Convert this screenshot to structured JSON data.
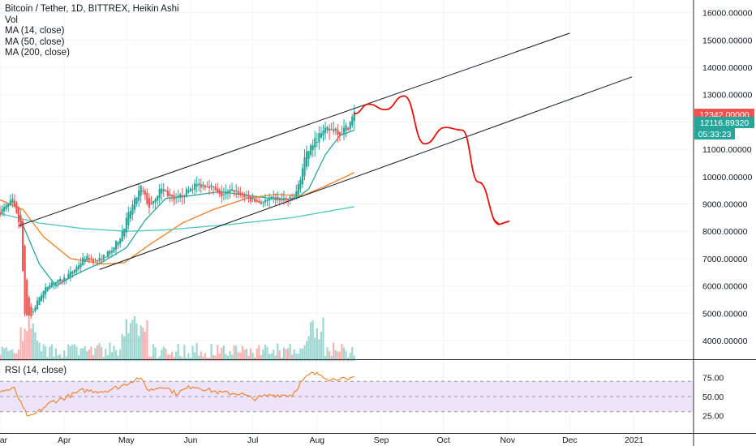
{
  "header": {
    "title": "Bitcoin / Tether, 1D, BITTREX, Heikin Ashi",
    "indicators": [
      "Vol",
      "MA (14, close)",
      "MA (50, close)",
      "MA (200, close)"
    ]
  },
  "rsi_label": "RSI (14, close)",
  "price_tags": {
    "last_price": "12342.00000",
    "ma_price": "12116.89320",
    "countdown": "05:33:23"
  },
  "colors": {
    "up": "#26a69a",
    "down": "#ef5350",
    "ma14": "#26a69a",
    "ma50": "#f57c1f",
    "ma200": "#4dc6c0",
    "rsi": "#f57c1f",
    "rsi_band": "#ede4fb",
    "drawing": "#e8100a",
    "trendline": "#131722"
  },
  "chart_data": [
    {
      "type": "candlestick",
      "title": "Bitcoin / Tether, 1D, BITTREX, Heikin Ashi",
      "x_axis": {
        "ticks": [
          "Mar",
          "Apr",
          "May",
          "Jun",
          "Jul",
          "Aug",
          "Sep",
          "Oct",
          "Nov",
          "Dec",
          "2021"
        ],
        "range": [
          "2020-03-01",
          "2021-01-20"
        ]
      },
      "y_axis": {
        "ticks": [
          "4000.00000",
          "5000.00000",
          "6000.00000",
          "7000.00000",
          "8000.00000",
          "9000.00000",
          "10000.00000",
          "11000.00000",
          "12000.00000",
          "13000.00000",
          "14000.00000",
          "15000.00000",
          "16000.00000"
        ],
        "range": [
          3300,
          16400
        ],
        "position": "right"
      },
      "series": [
        {
          "name": "Price (Heikin Ashi close)",
          "key_points": [
            [
              "2020-03-01",
              8700
            ],
            [
              "2020-03-07",
              9100
            ],
            [
              "2020-03-11",
              8100
            ],
            [
              "2020-03-13",
              5000
            ],
            [
              "2020-03-16",
              4900
            ],
            [
              "2020-03-20",
              5600
            ],
            [
              "2020-03-25",
              6100
            ],
            [
              "2020-03-31",
              6200
            ],
            [
              "2020-04-06",
              6600
            ],
            [
              "2020-04-11",
              7050
            ],
            [
              "2020-04-17",
              6900
            ],
            [
              "2020-04-24",
              7300
            ],
            [
              "2020-04-28",
              7800
            ],
            [
              "2020-05-02",
              8600
            ],
            [
              "2020-05-08",
              9600
            ],
            [
              "2020-05-12",
              8900
            ],
            [
              "2020-05-18",
              9600
            ],
            [
              "2020-05-24",
              9100
            ],
            [
              "2020-05-31",
              9500
            ],
            [
              "2020-06-03",
              9700
            ],
            [
              "2020-06-10",
              9700
            ],
            [
              "2020-06-15",
              9300
            ],
            [
              "2020-06-22",
              9500
            ],
            [
              "2020-06-30",
              9150
            ],
            [
              "2020-07-05",
              9050
            ],
            [
              "2020-07-12",
              9200
            ],
            [
              "2020-07-20",
              9150
            ],
            [
              "2020-07-22",
              9400
            ],
            [
              "2020-07-26",
              10600
            ],
            [
              "2020-07-28",
              11000
            ],
            [
              "2020-08-02",
              11500
            ],
            [
              "2020-08-06",
              11700
            ],
            [
              "2020-08-10",
              11750
            ],
            [
              "2020-08-12",
              11600
            ],
            [
              "2020-08-16",
              11850
            ],
            [
              "2020-08-19",
              12300
            ]
          ]
        },
        {
          "name": "MA (14, close)",
          "key_points": [
            [
              "2020-03-10",
              8600
            ],
            [
              "2020-03-20",
              6800
            ],
            [
              "2020-03-28",
              6000
            ],
            [
              "2020-04-06",
              6400
            ],
            [
              "2020-04-20",
              6900
            ],
            [
              "2020-05-01",
              7400
            ],
            [
              "2020-05-10",
              8400
            ],
            [
              "2020-05-20",
              9200
            ],
            [
              "2020-06-01",
              9300
            ],
            [
              "2020-06-15",
              9450
            ],
            [
              "2020-06-30",
              9300
            ],
            [
              "2020-07-15",
              9150
            ],
            [
              "2020-07-22",
              9200
            ],
            [
              "2020-07-28",
              9550
            ],
            [
              "2020-08-05",
              10800
            ],
            [
              "2020-08-12",
              11500
            ],
            [
              "2020-08-19",
              11700
            ]
          ]
        },
        {
          "name": "MA (50, close)",
          "key_points": [
            [
              "2020-03-01",
              9150
            ],
            [
              "2020-03-12",
              8800
            ],
            [
              "2020-03-22",
              7800
            ],
            [
              "2020-04-04",
              7000
            ],
            [
              "2020-04-20",
              6800
            ],
            [
              "2020-04-30",
              6850
            ],
            [
              "2020-05-12",
              7500
            ],
            [
              "2020-05-28",
              8300
            ],
            [
              "2020-06-12",
              8800
            ],
            [
              "2020-06-28",
              9200
            ],
            [
              "2020-07-12",
              9350
            ],
            [
              "2020-07-25",
              9300
            ],
            [
              "2020-08-05",
              9650
            ],
            [
              "2020-08-19",
              10150
            ]
          ]
        },
        {
          "name": "MA (200, close)",
          "key_points": [
            [
              "2020-03-01",
              8650
            ],
            [
              "2020-03-20",
              8300
            ],
            [
              "2020-04-10",
              8100
            ],
            [
              "2020-05-01",
              8000
            ],
            [
              "2020-05-20",
              8050
            ],
            [
              "2020-06-20",
              8250
            ],
            [
              "2020-07-20",
              8500
            ],
            [
              "2020-08-19",
              8900
            ]
          ]
        }
      ],
      "volume": {
        "name": "Vol",
        "approx_range_price_units": [
          3350,
          5000
        ]
      },
      "drawings": {
        "upper_trendline": [
          [
            "2020-03-10",
            8200
          ],
          [
            "2020-12-01",
            15250
          ]
        ],
        "lower_trendline": [
          [
            "2020-04-18",
            6600
          ],
          [
            "2020-12-31",
            13650
          ]
        ],
        "forecast_path_approx": [
          [
            "2020-08-19",
            12300
          ],
          [
            "2020-08-26",
            12650
          ],
          [
            "2020-09-03",
            12450
          ],
          [
            "2020-09-12",
            12950
          ],
          [
            "2020-09-22",
            11200
          ],
          [
            "2020-10-02",
            11800
          ],
          [
            "2020-10-10",
            11700
          ],
          [
            "2020-10-18",
            9800
          ],
          [
            "2020-10-28",
            8250
          ]
        ]
      }
    },
    {
      "type": "line",
      "title": "RSI (14, close)",
      "y_axis": {
        "ticks": [
          "25.00",
          "50.00",
          "75.00"
        ],
        "range": [
          15,
          85
        ]
      },
      "band": [
        30,
        70
      ],
      "series": [
        {
          "name": "RSI (14, close)",
          "key_points": [
            [
              "2020-03-01",
              57
            ],
            [
              "2020-03-08",
              60
            ],
            [
              "2020-03-12",
              35
            ],
            [
              "2020-03-15",
              22
            ],
            [
              "2020-03-18",
              27
            ],
            [
              "2020-03-26",
              43
            ],
            [
              "2020-04-01",
              48
            ],
            [
              "2020-04-10",
              58
            ],
            [
              "2020-04-20",
              57
            ],
            [
              "2020-04-28",
              63
            ],
            [
              "2020-05-07",
              75
            ],
            [
              "2020-05-12",
              58
            ],
            [
              "2020-05-19",
              64
            ],
            [
              "2020-05-25",
              54
            ],
            [
              "2020-06-02",
              64
            ],
            [
              "2020-06-15",
              55
            ],
            [
              "2020-06-25",
              54
            ],
            [
              "2020-07-01",
              47
            ],
            [
              "2020-07-10",
              52
            ],
            [
              "2020-07-20",
              52
            ],
            [
              "2020-07-24",
              68
            ],
            [
              "2020-07-29",
              80
            ],
            [
              "2020-08-03",
              79
            ],
            [
              "2020-08-08",
              72
            ],
            [
              "2020-08-12",
              75
            ],
            [
              "2020-08-16",
              70
            ],
            [
              "2020-08-19",
              76
            ]
          ]
        }
      ]
    }
  ]
}
